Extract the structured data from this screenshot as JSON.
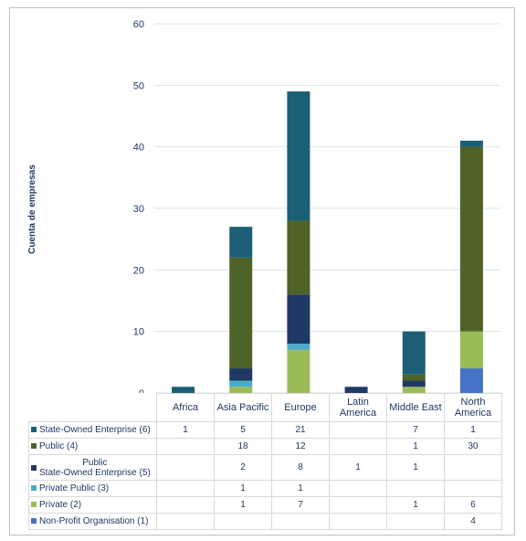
{
  "chart_data": {
    "type": "bar",
    "stacked": true,
    "ylabel": "Cuenta de empresas",
    "ylim": [
      0,
      60
    ],
    "yticks": [
      0,
      10,
      20,
      30,
      40,
      50,
      60
    ],
    "grid": true,
    "categories": [
      "Africa",
      "Asia Pacific",
      "Europe",
      "Latin America",
      "Middle East",
      "North America"
    ],
    "series": [
      {
        "name": "Non-Profit Organisation (1)",
        "color": "#4472c4",
        "values": [
          0,
          0,
          0,
          0,
          0,
          4
        ]
      },
      {
        "name": "Private (2)",
        "color": "#9bbb59",
        "values": [
          0,
          1,
          7,
          0,
          1,
          6
        ]
      },
      {
        "name": "Private Public (3)",
        "color": "#4bacc6",
        "values": [
          0,
          1,
          1,
          0,
          0,
          0
        ]
      },
      {
        "name": "Public State-Owned Enterprise (5)",
        "color": "#1f3864",
        "values": [
          0,
          2,
          8,
          1,
          1,
          0
        ]
      },
      {
        "name": "Public (4)",
        "color": "#4f6228",
        "values": [
          0,
          18,
          12,
          0,
          1,
          30
        ]
      },
      {
        "name": "State-Owned Enterprise (6)",
        "color": "#1b5e75",
        "values": [
          1,
          5,
          21,
          0,
          7,
          1
        ]
      }
    ],
    "table_rows": [
      {
        "label": "State-Owned Enterprise (6)",
        "color": "#1b5e75",
        "cells": [
          "1",
          "5",
          "21",
          "",
          "7",
          "1"
        ]
      },
      {
        "label": "Public (4)",
        "color": "#4f6228",
        "cells": [
          "",
          "18",
          "12",
          "",
          "1",
          "30"
        ]
      },
      {
        "label_line1": "Public",
        "label_line2": "State-Owned Enterprise (5)",
        "color": "#1f3864",
        "cells": [
          "",
          "2",
          "8",
          "1",
          "1",
          ""
        ]
      },
      {
        "label": "Private Public (3)",
        "color": "#4bacc6",
        "cells": [
          "",
          "1",
          "1",
          "",
          "",
          ""
        ]
      },
      {
        "label": "Private (2)",
        "color": "#9bbb59",
        "cells": [
          "",
          "1",
          "7",
          "",
          "1",
          "6"
        ]
      },
      {
        "label": "Non-Profit Organisation (1)",
        "color": "#4472c4",
        "cells": [
          "",
          "",
          "",
          "",
          "",
          "4"
        ]
      }
    ],
    "category_labels": [
      [
        "Africa"
      ],
      [
        "Asia Pacific"
      ],
      [
        "Europe"
      ],
      [
        "Latin",
        "America"
      ],
      [
        "Middle East"
      ],
      [
        "North",
        "America"
      ]
    ]
  }
}
